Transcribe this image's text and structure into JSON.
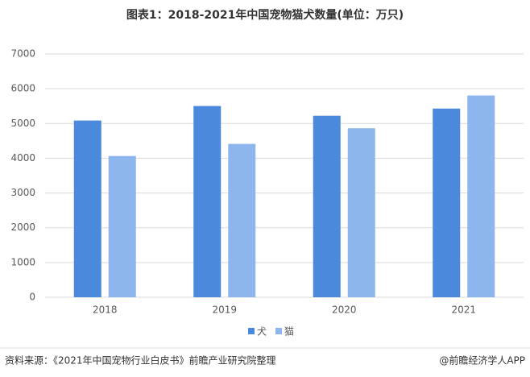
{
  "chart_data": {
    "type": "bar",
    "title": "图表1：2018-2021年中国宠物猫犬数量(单位：万只)",
    "categories": [
      "2018",
      "2019",
      "2020",
      "2021"
    ],
    "series": [
      {
        "name": "犬",
        "color": "#4a89dc",
        "values": [
          5085,
          5503,
          5222,
          5429
        ]
      },
      {
        "name": "猫",
        "color": "#8db5ee",
        "values": [
          4064,
          4412,
          4862,
          5806
        ]
      }
    ],
    "ylim": [
      0,
      7000
    ],
    "yticks": [
      0,
      1000,
      2000,
      3000,
      4000,
      5000,
      6000,
      7000
    ],
    "grid": true,
    "legend": "bottom"
  },
  "footer": {
    "source": "资料来源：《2021年中国宠物行业白皮书》前瞻产业研究院整理",
    "credit": "@前瞻经济学人APP"
  }
}
